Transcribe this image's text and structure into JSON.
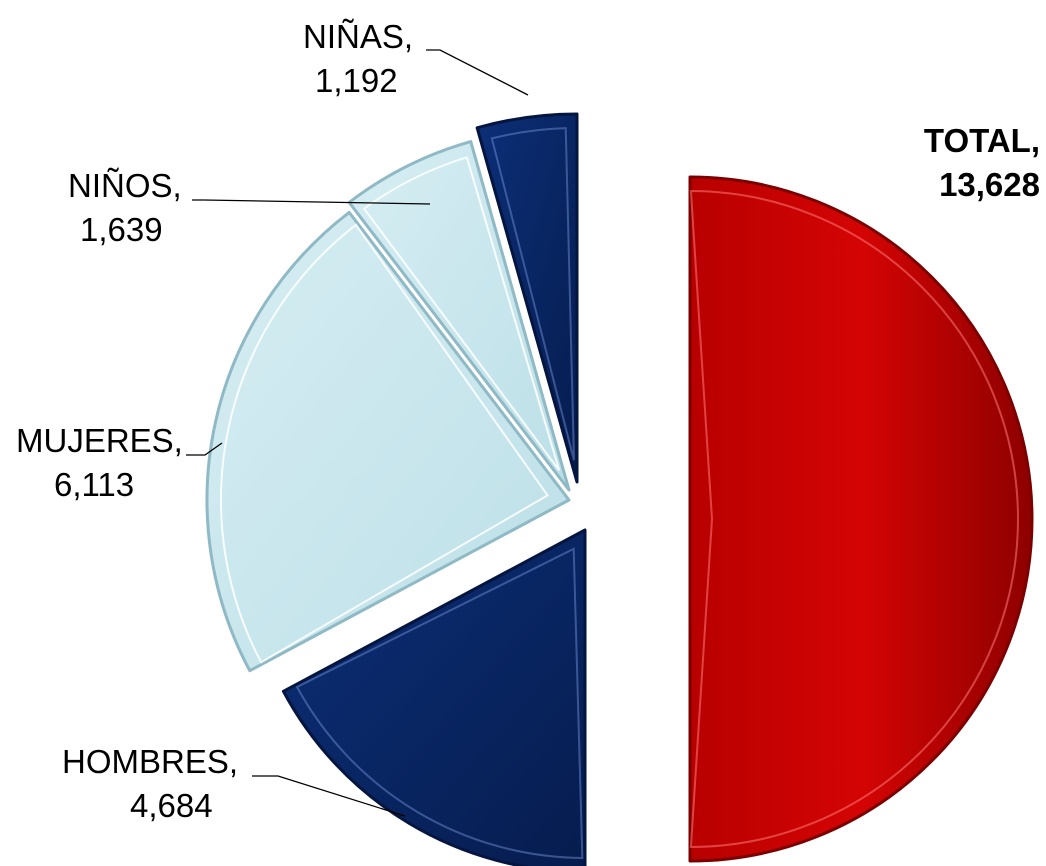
{
  "chart_data": {
    "type": "pie",
    "title": "",
    "slices": [
      {
        "name": "TOTAL",
        "label": "TOTAL,",
        "value": 13628,
        "value_label": "13,628",
        "color": "#cc0000",
        "bold": true
      },
      {
        "name": "HOMBRES",
        "label": "HOMBRES,",
        "value": 4684,
        "value_label": "4,684",
        "color": "#0a2a6e"
      },
      {
        "name": "MUJERES",
        "label": "MUJERES,",
        "value": 6113,
        "value_label": "6,113",
        "color": "#cbe6ec"
      },
      {
        "name": "NIÑOS",
        "label": "NIÑOS,",
        "value": 1639,
        "value_label": "1,639",
        "color": "#cbe6ec"
      },
      {
        "name": "NIÑAS",
        "label": "NIÑAS,",
        "value": 1192,
        "value_label": "1,192",
        "color": "#0a2a6e"
      }
    ],
    "exploded": [
      "MUJERES",
      "NIÑOS",
      "NIÑAS"
    ],
    "legend": "none"
  }
}
